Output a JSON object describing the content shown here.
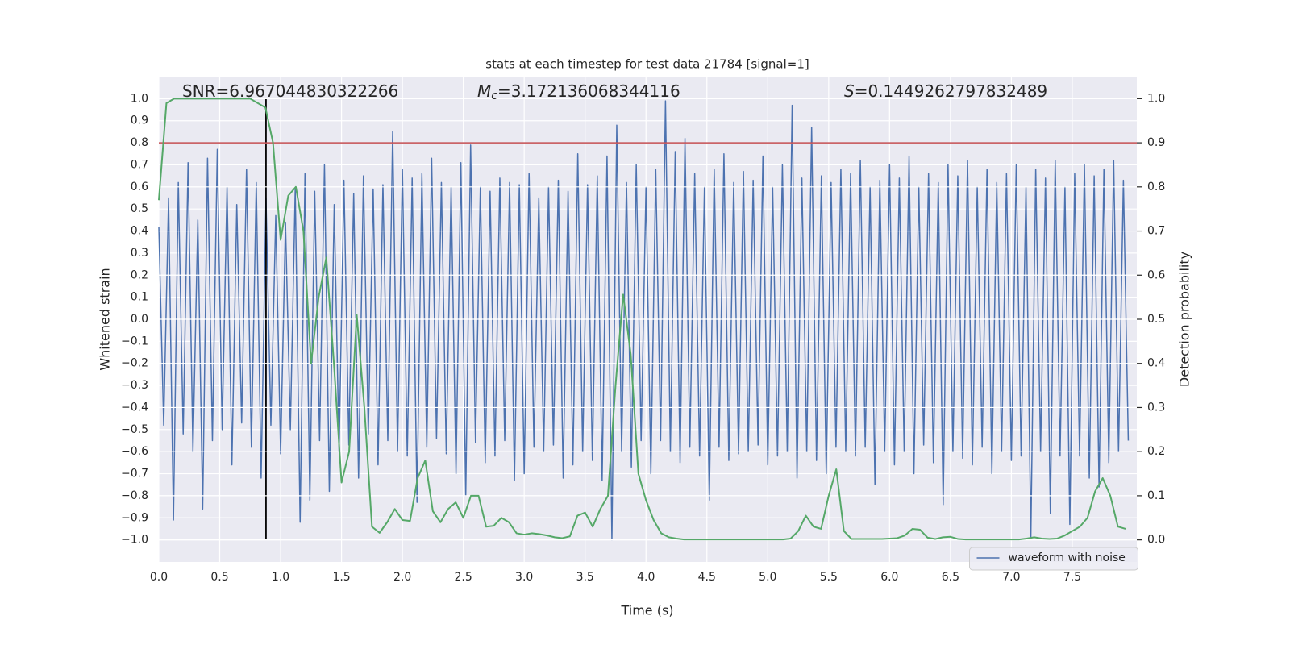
{
  "chart_data": {
    "type": "line",
    "title": "stats at each timestep for test data 21784 [signal=1]",
    "xlabel": "Time (s)",
    "ylabel": "Whitened strain",
    "y2label": "Detection probability",
    "xlim": [
      0,
      8.03
    ],
    "ylim": [
      -1.1,
      1.1
    ],
    "y2lim": [
      -0.05,
      1.05
    ],
    "grid": true,
    "legend": "lower right",
    "xticks": [
      {
        "value": 0,
        "label": "0.0"
      },
      {
        "value": 0.5,
        "label": "0.5"
      },
      {
        "value": 1,
        "label": "1.0"
      },
      {
        "value": 1.5,
        "label": "1.5"
      },
      {
        "value": 2,
        "label": "2.0"
      },
      {
        "value": 2.5,
        "label": "2.5"
      },
      {
        "value": 3,
        "label": "3.0"
      },
      {
        "value": 3.5,
        "label": "3.5"
      },
      {
        "value": 4,
        "label": "4.0"
      },
      {
        "value": 4.5,
        "label": "4.5"
      },
      {
        "value": 5,
        "label": "5.0"
      },
      {
        "value": 5.5,
        "label": "5.5"
      },
      {
        "value": 6,
        "label": "6.0"
      },
      {
        "value": 6.5,
        "label": "6.5"
      },
      {
        "value": 7,
        "label": "7.0"
      },
      {
        "value": 7.5,
        "label": "7.5"
      }
    ],
    "yticks": [
      {
        "value": -1,
        "label": "−1.0"
      },
      {
        "value": -0.9,
        "label": "−0.9"
      },
      {
        "value": -0.8,
        "label": "−0.8"
      },
      {
        "value": -0.7,
        "label": "−0.7"
      },
      {
        "value": -0.6,
        "label": "−0.6"
      },
      {
        "value": -0.5,
        "label": "−0.5"
      },
      {
        "value": -0.4,
        "label": "−0.4"
      },
      {
        "value": -0.3,
        "label": "−0.3"
      },
      {
        "value": -0.2,
        "label": "−0.2"
      },
      {
        "value": -0.1,
        "label": "−0.1"
      },
      {
        "value": 0,
        "label": "0.0"
      },
      {
        "value": 0.1,
        "label": "0.1"
      },
      {
        "value": 0.2,
        "label": "0.2"
      },
      {
        "value": 0.3,
        "label": "0.3"
      },
      {
        "value": 0.4,
        "label": "0.4"
      },
      {
        "value": 0.5,
        "label": "0.5"
      },
      {
        "value": 0.6,
        "label": "0.6"
      },
      {
        "value": 0.7,
        "label": "0.7"
      },
      {
        "value": 0.8,
        "label": "0.8"
      },
      {
        "value": 0.9,
        "label": "0.9"
      },
      {
        "value": 1,
        "label": "1.0"
      }
    ],
    "y2ticks": [
      {
        "value": 0,
        "label": "0.0"
      },
      {
        "value": 0.1,
        "label": "0.1"
      },
      {
        "value": 0.2,
        "label": "0.2"
      },
      {
        "value": 0.3,
        "label": "0.3"
      },
      {
        "value": 0.4,
        "label": "0.4"
      },
      {
        "value": 0.5,
        "label": "0.5"
      },
      {
        "value": 0.6,
        "label": "0.6"
      },
      {
        "value": 0.7,
        "label": "0.7"
      },
      {
        "value": 0.8,
        "label": "0.8"
      },
      {
        "value": 0.9,
        "label": "0.9"
      },
      {
        "value": 1,
        "label": "1.0"
      }
    ],
    "series": [
      {
        "name": "waveform with noise",
        "color": "#4c72b0",
        "x": [
          0,
          0.04,
          0.08,
          0.12,
          0.16,
          0.2,
          0.24,
          0.28,
          0.32,
          0.36,
          0.4,
          0.44,
          0.48,
          0.52,
          0.56,
          0.6,
          0.64,
          0.68,
          0.72,
          0.76,
          0.8,
          0.84,
          0.88,
          0.92,
          0.96,
          1,
          1.04,
          1.08,
          1.12,
          1.16,
          1.2,
          1.24,
          1.28,
          1.32,
          1.36,
          1.4,
          1.44,
          1.48,
          1.52,
          1.56,
          1.6,
          1.64,
          1.68,
          1.72,
          1.76,
          1.8,
          1.84,
          1.88,
          1.92,
          1.96,
          2,
          2.04,
          2.08,
          2.12,
          2.16,
          2.2,
          2.24,
          2.28,
          2.32,
          2.36,
          2.4,
          2.44,
          2.48,
          2.52,
          2.56,
          2.6,
          2.64,
          2.68,
          2.72,
          2.76,
          2.8,
          2.84,
          2.88,
          2.92,
          2.96,
          3,
          3.04,
          3.08,
          3.12,
          3.16,
          3.2,
          3.24,
          3.28,
          3.32,
          3.36,
          3.4,
          3.44,
          3.48,
          3.52,
          3.56,
          3.6,
          3.64,
          3.68,
          3.72,
          3.76,
          3.8,
          3.84,
          3.88,
          3.92,
          3.96,
          4,
          4.04,
          4.08,
          4.12,
          4.16,
          4.2,
          4.24,
          4.28,
          4.32,
          4.36,
          4.4,
          4.44,
          4.48,
          4.52,
          4.56,
          4.6,
          4.64,
          4.68,
          4.72,
          4.76,
          4.8,
          4.84,
          4.88,
          4.92,
          4.96,
          5,
          5.04,
          5.08,
          5.12,
          5.16,
          5.2,
          5.24,
          5.28,
          5.32,
          5.36,
          5.4,
          5.44,
          5.48,
          5.52,
          5.56,
          5.6,
          5.64,
          5.68,
          5.72,
          5.76,
          5.8,
          5.84,
          5.88,
          5.92,
          5.96,
          6,
          6.04,
          6.08,
          6.12,
          6.16,
          6.2,
          6.24,
          6.28,
          6.32,
          6.36,
          6.4,
          6.44,
          6.48,
          6.52,
          6.56,
          6.6,
          6.64,
          6.68,
          6.72,
          6.76,
          6.8,
          6.84,
          6.88,
          6.92,
          6.96,
          7,
          7.04,
          7.08,
          7.12,
          7.16,
          7.2,
          7.24,
          7.28,
          7.32,
          7.36,
          7.4,
          7.44,
          7.48,
          7.52,
          7.56,
          7.6,
          7.64,
          7.68,
          7.72,
          7.76,
          7.8,
          7.84,
          7.88,
          7.92,
          7.96
        ],
        "values": [
          0.42,
          -0.48,
          0.55,
          -0.91,
          0.62,
          -0.52,
          0.71,
          -0.6,
          0.45,
          -0.86,
          0.73,
          -0.55,
          0.77,
          -0.5,
          0.6,
          -0.66,
          0.52,
          -0.47,
          0.68,
          -0.58,
          0.62,
          -0.72,
          0.55,
          -0.48,
          0.47,
          -0.61,
          0.44,
          -0.5,
          0.59,
          -0.92,
          0.66,
          -0.82,
          0.58,
          -0.55,
          0.7,
          -0.78,
          0.52,
          -0.6,
          0.63,
          -0.57,
          0.57,
          -0.72,
          0.65,
          -0.52,
          0.59,
          -0.66,
          0.61,
          -0.55,
          0.85,
          -0.6,
          0.68,
          -0.62,
          0.64,
          -0.83,
          0.66,
          -0.58,
          0.73,
          -0.54,
          0.62,
          -0.61,
          0.6,
          -0.7,
          0.71,
          -0.8,
          0.79,
          -0.56,
          0.6,
          -0.65,
          0.58,
          -0.62,
          0.64,
          -0.55,
          0.62,
          -0.73,
          0.61,
          -0.7,
          0.66,
          -0.58,
          0.55,
          -0.6,
          0.6,
          -0.57,
          0.63,
          -0.72,
          0.58,
          -0.66,
          0.75,
          -0.6,
          0.61,
          -0.64,
          0.65,
          -0.73,
          0.74,
          -1.0,
          0.88,
          -0.6,
          0.62,
          -0.67,
          0.7,
          -0.55,
          0.6,
          -0.7,
          0.68,
          -0.55,
          0.99,
          -0.6,
          0.76,
          -0.65,
          0.82,
          -0.58,
          0.66,
          -0.62,
          0.6,
          -0.82,
          0.68,
          -0.58,
          0.75,
          -0.64,
          0.62,
          -0.61,
          0.67,
          -0.6,
          0.63,
          -0.57,
          0.74,
          -0.66,
          0.6,
          -0.62,
          0.7,
          -0.6,
          0.97,
          -0.72,
          0.64,
          -0.6,
          0.87,
          -0.64,
          0.65,
          -0.7,
          0.62,
          -0.58,
          0.68,
          -0.6,
          0.66,
          -0.62,
          0.72,
          -0.58,
          0.6,
          -0.75,
          0.63,
          -0.6,
          0.7,
          -0.66,
          0.64,
          -0.6,
          0.74,
          -0.7,
          0.6,
          -0.57,
          0.66,
          -0.65,
          0.62,
          -0.84,
          0.7,
          -0.6,
          0.65,
          -0.63,
          0.72,
          -0.66,
          0.6,
          -0.58,
          0.68,
          -0.7,
          0.62,
          -0.6,
          0.66,
          -0.64,
          0.7,
          -0.62,
          0.6,
          -0.99,
          0.68,
          -0.6,
          0.64,
          -0.88,
          0.72,
          -0.62,
          0.6,
          -0.93,
          0.66,
          -0.62,
          0.7,
          -0.72,
          0.65,
          -0.76,
          0.68,
          -0.65,
          0.72,
          -0.6,
          0.63,
          -0.55
        ]
      },
      {
        "color": "#55a868",
        "axis": "y2",
        "x": [
          0,
          0.0625,
          0.125,
          0.1875,
          0.25,
          0.3125,
          0.375,
          0.4375,
          0.5,
          0.5625,
          0.625,
          0.6875,
          0.75,
          0.8125,
          0.875,
          0.9375,
          1,
          1.0625,
          1.125,
          1.1875,
          1.25,
          1.3125,
          1.375,
          1.4375,
          1.5,
          1.5625,
          1.625,
          1.6875,
          1.75,
          1.8125,
          1.875,
          1.9375,
          2,
          2.0625,
          2.125,
          2.1875,
          2.25,
          2.3125,
          2.375,
          2.4375,
          2.5,
          2.5625,
          2.625,
          2.6875,
          2.75,
          2.8125,
          2.875,
          2.9375,
          3,
          3.0625,
          3.125,
          3.1875,
          3.25,
          3.3125,
          3.375,
          3.4375,
          3.5,
          3.5625,
          3.625,
          3.6875,
          3.75,
          3.8125,
          3.875,
          3.9375,
          4,
          4.0625,
          4.125,
          4.1875,
          4.25,
          4.3125,
          4.375,
          4.4375,
          4.5,
          4.5625,
          4.625,
          4.6875,
          4.75,
          4.8125,
          4.875,
          4.9375,
          5,
          5.0625,
          5.125,
          5.1875,
          5.25,
          5.3125,
          5.375,
          5.4375,
          5.5,
          5.5625,
          5.625,
          5.6875,
          5.75,
          5.8125,
          5.875,
          5.9375,
          6,
          6.0625,
          6.125,
          6.1875,
          6.25,
          6.3125,
          6.375,
          6.4375,
          6.5,
          6.5625,
          6.625,
          6.6875,
          6.75,
          6.8125,
          6.875,
          6.9375,
          7,
          7.0625,
          7.125,
          7.1875,
          7.25,
          7.3125,
          7.375,
          7.4375,
          7.5,
          7.5625,
          7.625,
          7.6875,
          7.75,
          7.8125,
          7.875,
          7.9375
        ],
        "values": [
          0.77,
          0.99,
          1.0,
          1.0,
          1.0,
          1.0,
          1.0,
          1.0,
          1.0,
          1.0,
          1.0,
          1.0,
          1.0,
          0.99,
          0.98,
          0.9,
          0.68,
          0.78,
          0.8,
          0.7,
          0.4,
          0.55,
          0.64,
          0.4,
          0.13,
          0.2,
          0.51,
          0.3,
          0.03,
          0.016,
          0.04,
          0.07,
          0.045,
          0.043,
          0.14,
          0.18,
          0.065,
          0.04,
          0.07,
          0.085,
          0.05,
          0.1,
          0.1,
          0.03,
          0.032,
          0.05,
          0.04,
          0.015,
          0.012,
          0.015,
          0.013,
          0.01,
          0.006,
          0.004,
          0.008,
          0.055,
          0.062,
          0.03,
          0.07,
          0.1,
          0.35,
          0.556,
          0.42,
          0.15,
          0.09,
          0.045,
          0.015,
          0.006,
          0.003,
          0.001,
          0.001,
          0.001,
          0.001,
          0.001,
          0.001,
          0.001,
          0.001,
          0.001,
          0.001,
          0.001,
          0.001,
          0.001,
          0.001,
          0.003,
          0.02,
          0.055,
          0.03,
          0.025,
          0.1,
          0.16,
          0.02,
          0.002,
          0.002,
          0.002,
          0.002,
          0.002,
          0.003,
          0.004,
          0.01,
          0.025,
          0.023,
          0.005,
          0.002,
          0.006,
          0.007,
          0.002,
          0.001,
          0.001,
          0.001,
          0.001,
          0.001,
          0.001,
          0.001,
          0.001,
          0.003,
          0.006,
          0.003,
          0.002,
          0.003,
          0.01,
          0.02,
          0.03,
          0.05,
          0.11,
          0.14,
          0.1,
          0.03,
          0.025
        ]
      }
    ],
    "hlines": [
      {
        "value": 0.9,
        "axis": "y2",
        "color": "#c44e52"
      }
    ],
    "vlines": [
      {
        "x": 0.88,
        "ymin": -1,
        "ymax": 1,
        "color": "#000000"
      }
    ],
    "annotations": [
      {
        "parts": [
          {
            "text": "SNR=6.967044830322266"
          }
        ]
      },
      {
        "parts": [
          {
            "text": "M",
            "style": "italic"
          },
          {
            "text": "c",
            "style": "italic-sub"
          },
          {
            "text": "=3.172136068344116"
          }
        ]
      },
      {
        "parts": [
          {
            "text": "S",
            "style": "italic"
          },
          {
            "text": "=0.1449262797832489"
          }
        ]
      }
    ]
  }
}
